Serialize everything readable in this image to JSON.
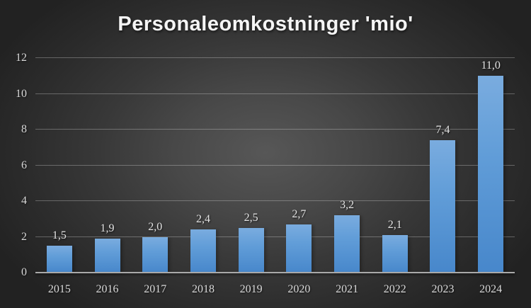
{
  "chart_data": {
    "type": "bar",
    "title": "Personaleomkostninger 'mio'",
    "categories": [
      "2015",
      "2016",
      "2017",
      "2018",
      "2019",
      "2020",
      "2021",
      "2022",
      "2023",
      "2024"
    ],
    "values": [
      1.5,
      1.9,
      2.0,
      2.4,
      2.5,
      2.7,
      3.2,
      2.1,
      7.4,
      11.0
    ],
    "value_labels": [
      "1,5",
      "1,9",
      "2,0",
      "2,4",
      "2,5",
      "2,7",
      "3,2",
      "2,1",
      "7,4",
      "11,0"
    ],
    "xlabel": "",
    "ylabel": "",
    "ylim": [
      0,
      12
    ],
    "yticks": [
      0,
      2,
      4,
      6,
      8,
      10,
      12
    ],
    "grid": true,
    "legend": "none",
    "decimal_separator": ",",
    "colors": {
      "bar_top": "#7aacdf",
      "bar_bottom": "#4787cb",
      "background_center": "#575757",
      "background_edge": "#222222",
      "gridline": "rgba(255,255,255,0.28)",
      "axis_line": "#a9a9a9",
      "tick_label": "#d9d9d9",
      "value_label": "#e3e3e3",
      "title": "#f5f5f5"
    }
  }
}
